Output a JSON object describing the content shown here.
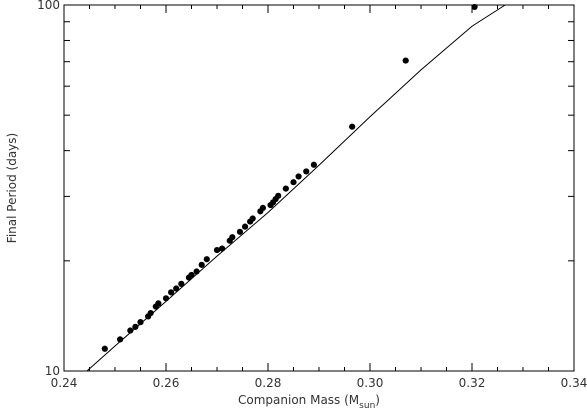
{
  "chart_data": {
    "type": "scatter",
    "title": "",
    "xlabel": {
      "main": "Companion Mass (M",
      "subscript": "sun",
      "suffix": ")"
    },
    "ylabel": "Final Period (days)",
    "xlim": [
      0.24,
      0.34
    ],
    "ylim": [
      10,
      100
    ],
    "y_scale": "log",
    "grid": false,
    "x_ticks": [
      0.24,
      0.26,
      0.28,
      0.3,
      0.32,
      0.34
    ],
    "x_tick_labels": [
      "0.24",
      "0.26",
      "0.28",
      "0.30",
      "0.32",
      "0.34"
    ],
    "y_major_ticks": [
      10,
      100
    ],
    "y_major_tick_labels": [
      "10",
      "100"
    ],
    "y_minor_ticks": [
      20,
      30,
      40,
      50,
      60,
      70,
      80,
      90
    ],
    "series": [
      {
        "kind": "points",
        "marker": "filled-circle",
        "color": "#000000",
        "points": [
          [
            0.248,
            11.5
          ],
          [
            0.251,
            12.2
          ],
          [
            0.253,
            12.9
          ],
          [
            0.254,
            13.2
          ],
          [
            0.255,
            13.6
          ],
          [
            0.2565,
            14.1
          ],
          [
            0.257,
            14.4
          ],
          [
            0.258,
            15.0
          ],
          [
            0.2585,
            15.3
          ],
          [
            0.26,
            15.8
          ],
          [
            0.261,
            16.4
          ],
          [
            0.262,
            16.8
          ],
          [
            0.263,
            17.3
          ],
          [
            0.2645,
            18.0
          ],
          [
            0.265,
            18.3
          ],
          [
            0.266,
            18.7
          ],
          [
            0.267,
            19.5
          ],
          [
            0.268,
            20.2
          ],
          [
            0.27,
            21.4
          ],
          [
            0.271,
            21.6
          ],
          [
            0.2725,
            22.7
          ],
          [
            0.273,
            23.2
          ],
          [
            0.2745,
            24.0
          ],
          [
            0.2755,
            24.8
          ],
          [
            0.2765,
            25.6
          ],
          [
            0.277,
            26.1
          ],
          [
            0.2785,
            27.3
          ],
          [
            0.279,
            27.9
          ],
          [
            0.2805,
            28.4
          ],
          [
            0.281,
            28.9
          ],
          [
            0.2815,
            29.5
          ],
          [
            0.282,
            30.1
          ],
          [
            0.2835,
            31.5
          ],
          [
            0.285,
            32.8
          ],
          [
            0.286,
            34.0
          ],
          [
            0.2875,
            35.1
          ],
          [
            0.289,
            36.6
          ],
          [
            0.2965,
            46.5
          ],
          [
            0.307,
            70.5
          ],
          [
            0.3205,
            98.8
          ]
        ]
      },
      {
        "kind": "fit-line",
        "color": "#000000",
        "points": [
          [
            0.2445,
            10.0
          ],
          [
            0.25,
            11.7
          ],
          [
            0.26,
            15.5
          ],
          [
            0.27,
            20.6
          ],
          [
            0.28,
            27.1
          ],
          [
            0.29,
            36.5
          ],
          [
            0.3,
            49.5
          ],
          [
            0.31,
            66.5
          ],
          [
            0.32,
            87.5
          ],
          [
            0.3265,
            100
          ]
        ]
      }
    ]
  },
  "colors": {
    "background": "#ffffff",
    "axis": "#000000",
    "text": "#333333",
    "marker": "#000000"
  }
}
